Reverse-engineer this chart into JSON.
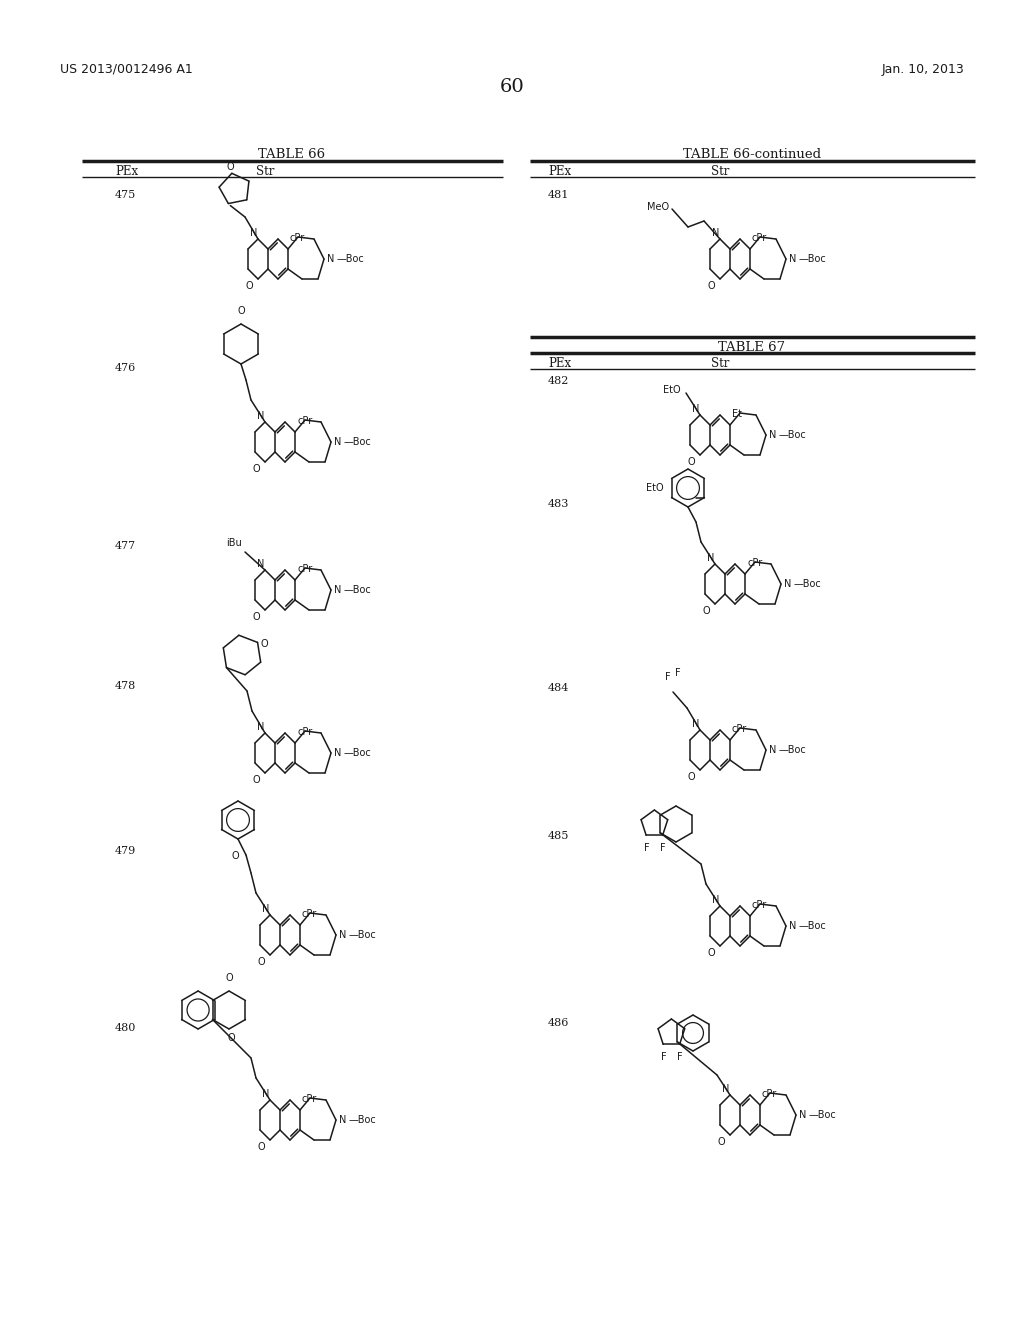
{
  "page_number": "60",
  "patent_number": "US 2013/0012496 A1",
  "patent_date": "Jan. 10, 2013",
  "background_color": "#ffffff",
  "text_color": "#1a1a1a",
  "left_table_title": "TABLE 66",
  "right_table_title1": "TABLE 66-continued",
  "right_table_title2": "TABLE 67",
  "col_headers": [
    "PEx",
    "Str"
  ],
  "left_entries": [
    "475",
    "476",
    "477",
    "478",
    "479",
    "480"
  ],
  "right_entries_cont": [
    "481"
  ],
  "right_entries_67": [
    "482",
    "483",
    "484",
    "485",
    "486"
  ]
}
